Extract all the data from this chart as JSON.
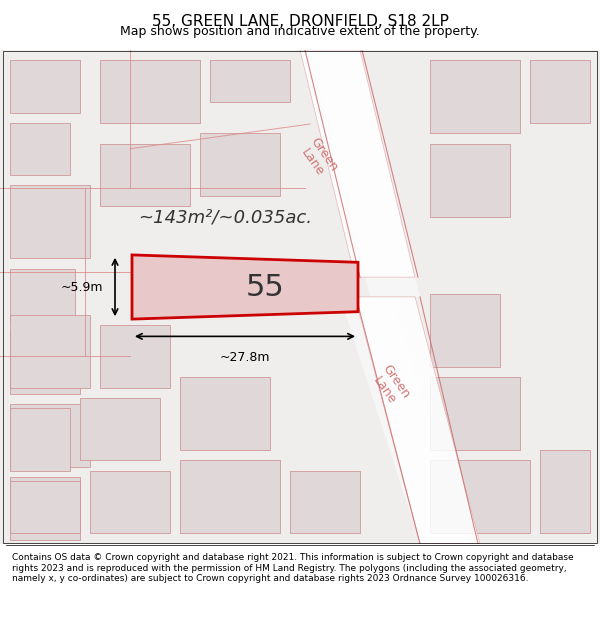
{
  "title": "55, GREEN LANE, DRONFIELD, S18 2LP",
  "subtitle": "Map shows position and indicative extent of the property.",
  "footer": "Contains OS data © Crown copyright and database right 2021. This information is subject to Crown copyright and database rights 2023 and is reproduced with the permission of HM Land Registry. The polygons (including the associated geometry, namely x, y co-ordinates) are subject to Crown copyright and database rights 2023 Ordnance Survey 100026316.",
  "area_label": "~143m²/~0.035ac.",
  "width_label": "~27.8m",
  "height_label": "~5.9m",
  "plot_number": "55",
  "bg_color": "#f5f0f0",
  "map_bg": "#f0eded",
  "plot_fill": "#e8c8c8",
  "plot_edge": "#cc0000",
  "road_color": "#e8c0c0",
  "building_color": "#e0d8d8",
  "building_edge": "#cc8888",
  "road_label_color": "#cc6666",
  "title_fontsize": 11,
  "subtitle_fontsize": 9,
  "footer_fontsize": 6.5
}
